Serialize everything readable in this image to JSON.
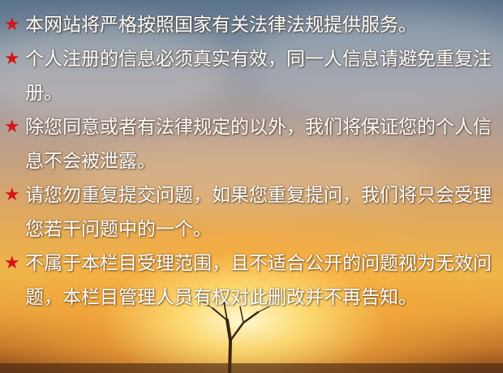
{
  "notices": [
    {
      "bullet": "★",
      "text": "本网站将严格按照国家有关法律法规提供服务。"
    },
    {
      "bullet": "★",
      "text": "个人注册的信息必须真实有效，同一人信息请避免重复注册。"
    },
    {
      "bullet": "★",
      "text": "除您同意或者有法律规定的以外，我们将保证您的个人信息不会被泄露。"
    },
    {
      "bullet": "★",
      "text": "请您勿重复提交问题，如果您重复提问，我们将只会受理您若干问题中的一个。"
    },
    {
      "bullet": "★",
      "text": "不属于本栏目受理范围，且不适合公开的问题视为无效问题，本栏目管理人员有权对此删改并不再告知。"
    }
  ],
  "colors": {
    "bullet": "#d4151a",
    "text": "#ffffff",
    "sky_top": "#59728c",
    "sun_glow": "#fff6c8"
  }
}
